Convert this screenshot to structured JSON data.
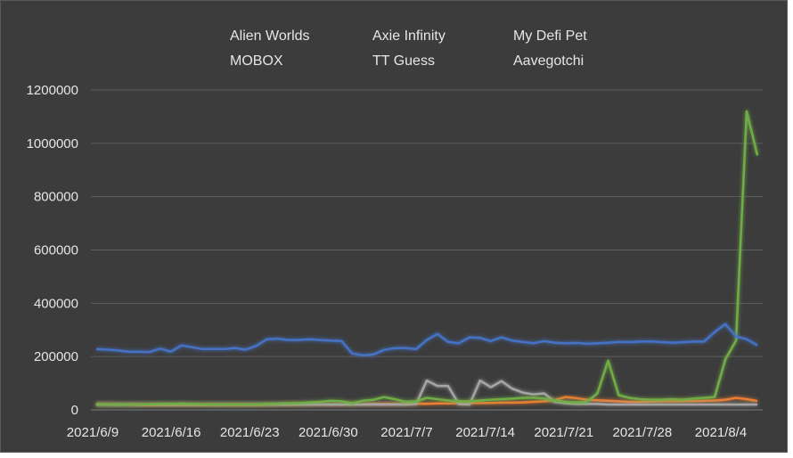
{
  "chart_data": {
    "type": "line",
    "title": "",
    "xlabel": "",
    "ylabel": "",
    "ylim": [
      0,
      1200000
    ],
    "yticks": [
      0,
      200000,
      400000,
      600000,
      800000,
      1000000,
      1200000
    ],
    "yticklabels": [
      "0",
      "200000",
      "400000",
      "600000",
      "800000",
      "1000000",
      "1200000"
    ],
    "xticklabels": [
      "2021/6/9",
      "2021/6/16",
      "2021/6/23",
      "2021/6/30",
      "2021/7/7",
      "2021/7/14",
      "2021/7/21",
      "2021/7/28",
      "2021/8/4"
    ],
    "legend_position": "top",
    "grid": true,
    "series": [
      {
        "name": "Alien Worlds",
        "color": "#4472c4",
        "values": [
          228000,
          226000,
          223000,
          218000,
          218000,
          217000,
          230000,
          218000,
          242000,
          235000,
          228000,
          229000,
          228000,
          232000,
          226000,
          240000,
          265000,
          267000,
          262000,
          262000,
          265000,
          262000,
          260000,
          258000,
          212000,
          205000,
          208000,
          225000,
          232000,
          232000,
          228000,
          262000,
          285000,
          255000,
          250000,
          272000,
          270000,
          258000,
          272000,
          260000,
          255000,
          250000,
          258000,
          252000,
          250000,
          251000,
          248000,
          250000,
          252000,
          255000,
          254000,
          256000,
          257000,
          254000,
          252000,
          254000,
          256000,
          256000,
          292000,
          322000,
          275000,
          265000,
          242000
        ]
      },
      {
        "name": "Axie Infinity",
        "color": "#ed7d31",
        "values": [
          20000,
          20000,
          19000,
          19000,
          18000,
          18000,
          18000,
          18000,
          18000,
          18000,
          18000,
          18000,
          18000,
          18000,
          18000,
          18000,
          19000,
          19000,
          19000,
          20000,
          20000,
          20000,
          20000,
          20000,
          21000,
          21000,
          22000,
          22000,
          22000,
          22000,
          23000,
          23000,
          24000,
          24000,
          25000,
          25000,
          26000,
          26000,
          27000,
          27000,
          28000,
          30000,
          32000,
          36000,
          48000,
          44000,
          38000,
          36000,
          34000,
          32000,
          30000,
          30000,
          31000,
          32000,
          32000,
          33000,
          33000,
          34000,
          35000,
          38000,
          45000,
          40000,
          33000
        ]
      },
      {
        "name": "My Defi Pet",
        "color": "#a5a5a5",
        "values": [
          20000,
          20000,
          20000,
          20000,
          20000,
          20000,
          20000,
          20000,
          20000,
          20000,
          20000,
          20000,
          20000,
          20000,
          20000,
          20000,
          20000,
          20000,
          20000,
          20000,
          20000,
          20000,
          20000,
          20000,
          20000,
          20000,
          20000,
          20000,
          20000,
          20000,
          22000,
          110000,
          90000,
          90000,
          22000,
          20000,
          110000,
          85000,
          108000,
          80000,
          65000,
          58000,
          62000,
          30000,
          25000,
          22000,
          22000,
          22000,
          20000,
          20000,
          20000,
          20000,
          20000,
          20000,
          20000,
          20000,
          20000,
          20000,
          20000,
          20000,
          20000,
          20000,
          20000
        ]
      },
      {
        "name": "MOBOX",
        "color": "#5b9bd5",
        "values": [
          15000,
          15000,
          15000,
          15000,
          15000,
          15000,
          15000,
          15000,
          15000,
          15000,
          15000,
          15000,
          15000,
          15000,
          15000,
          15000,
          15000,
          15000,
          15000,
          15000,
          15000,
          15000,
          15000,
          15000,
          15000,
          15000,
          15000,
          15000,
          15000,
          15000,
          15000,
          15000,
          15000,
          15000,
          15000,
          15000,
          15000,
          15000,
          15000,
          15000,
          15000,
          15000,
          15000,
          15000,
          15000,
          15000,
          15000,
          15000,
          15000,
          15000,
          15000,
          15000,
          15000,
          15000,
          15000,
          15000,
          15000,
          15000,
          15000,
          15000,
          15000,
          15000,
          15000
        ]
      },
      {
        "name": "TT Guess",
        "color": "#70ad47",
        "values": [
          22000,
          20000,
          21000,
          20000,
          20000,
          21000,
          22000,
          22000,
          23000,
          22000,
          21000,
          20000,
          20000,
          21000,
          20000,
          20000,
          22000,
          23000,
          25000,
          25000,
          28000,
          30000,
          34000,
          32000,
          25000,
          34000,
          38000,
          48000,
          40000,
          30000,
          32000,
          45000,
          40000,
          35000,
          32000,
          32000,
          35000,
          38000,
          40000,
          42000,
          45000,
          46000,
          42000,
          35000,
          30000,
          28000,
          30000,
          62000,
          185000,
          55000,
          45000,
          40000,
          38000,
          38000,
          40000,
          38000,
          42000,
          45000,
          48000,
          190000,
          260000,
          1120000,
          955000
        ]
      },
      {
        "name": "Aavegotchi",
        "color": "#264478",
        "values": [
          5000,
          5000,
          5000,
          5000,
          5000,
          5000,
          5000,
          5000,
          5000,
          5000,
          5000,
          5000,
          5000,
          5000,
          5000,
          5000,
          5000,
          5000,
          5000,
          5000,
          5000,
          5000,
          5000,
          5000,
          5000,
          5000,
          5000,
          5000,
          5000,
          5000,
          5000,
          5000,
          5000,
          5000,
          5000,
          5000,
          5000,
          5000,
          5000,
          5000,
          5000,
          5000,
          5000,
          5000,
          5000,
          5000,
          5000,
          5000,
          5000,
          5000,
          5000,
          5000,
          5000,
          5000,
          5000,
          5000,
          5000,
          5000,
          5000,
          5000,
          5000,
          5000,
          5000
        ]
      }
    ]
  }
}
